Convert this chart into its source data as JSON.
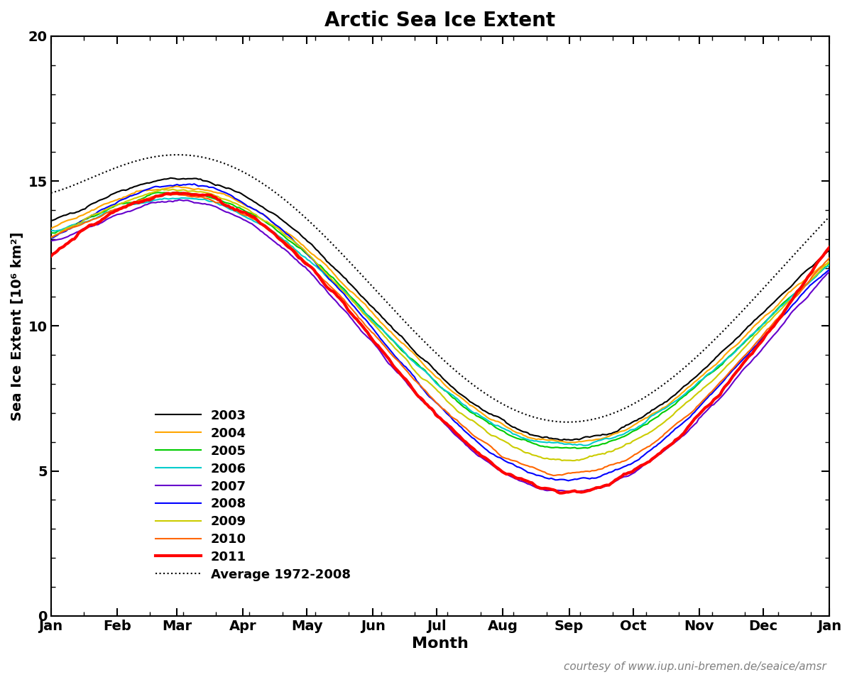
{
  "title": "Arctic Sea Ice Extent",
  "xlabel": "Month",
  "ylabel": "Sea Ice Extent [10⁶ km²]",
  "credit": "courtesy of www.iup.uni-bremen.de/seaice/amsr",
  "ylim": [
    0,
    20
  ],
  "yticks": [
    0,
    5,
    10,
    15,
    20
  ],
  "xtick_labels": [
    "Jan",
    "Feb",
    "Mar",
    "Apr",
    "May",
    "Jun",
    "Jul",
    "Aug",
    "Sep",
    "Oct",
    "Nov",
    "Dec",
    "Jan"
  ],
  "legend_entries": [
    "2003",
    "2004",
    "2005",
    "2006",
    "2007",
    "2008",
    "2009",
    "2010",
    "2011",
    "Average 1972-2008"
  ],
  "line_colors": {
    "2003": "#000000",
    "2004": "#ffa500",
    "2005": "#00cc00",
    "2006": "#00cccc",
    "2007": "#6600cc",
    "2008": "#0000ff",
    "2009": "#cccc00",
    "2010": "#ff6600",
    "2011": "#ff0000",
    "avg": "#000000"
  },
  "line_widths": {
    "2003": 1.5,
    "2004": 1.5,
    "2005": 1.5,
    "2006": 1.5,
    "2007": 1.5,
    "2008": 1.5,
    "2009": 1.5,
    "2010": 1.5,
    "2011": 3.0,
    "avg": 1.5
  },
  "background_color": "#ffffff",
  "year_params": {
    "2003": {
      "mar": 15.0,
      "sep": 6.1,
      "jan": 13.5,
      "dec": 12.3,
      "noise": 0.08
    },
    "2004": {
      "mar": 14.7,
      "sep": 6.0,
      "jan": 13.3,
      "dec": 12.0,
      "noise": 0.07
    },
    "2005": {
      "mar": 14.5,
      "sep": 5.8,
      "jan": 13.1,
      "dec": 11.8,
      "noise": 0.07
    },
    "2006": {
      "mar": 14.3,
      "sep": 5.9,
      "jan": 13.2,
      "dec": 11.9,
      "noise": 0.08
    },
    "2007": {
      "mar": 14.2,
      "sep": 4.3,
      "jan": 12.8,
      "dec": 11.6,
      "noise": 0.07
    },
    "2008": {
      "mar": 14.8,
      "sep": 4.7,
      "jan": 12.9,
      "dec": 11.7,
      "noise": 0.07
    },
    "2009": {
      "mar": 14.6,
      "sep": 5.4,
      "jan": 13.0,
      "dec": 11.9,
      "noise": 0.07
    },
    "2010": {
      "mar": 14.4,
      "sep": 4.9,
      "jan": 13.0,
      "dec": 12.1,
      "noise": 0.07
    },
    "2011": {
      "mar": 14.5,
      "sep": 4.3,
      "jan": 12.4,
      "dec": 12.5,
      "noise": 0.1
    }
  },
  "avg_params": {
    "mar": 15.8,
    "sep": 6.7,
    "jan": 14.5,
    "dec": 13.5,
    "noise": 0.0
  }
}
